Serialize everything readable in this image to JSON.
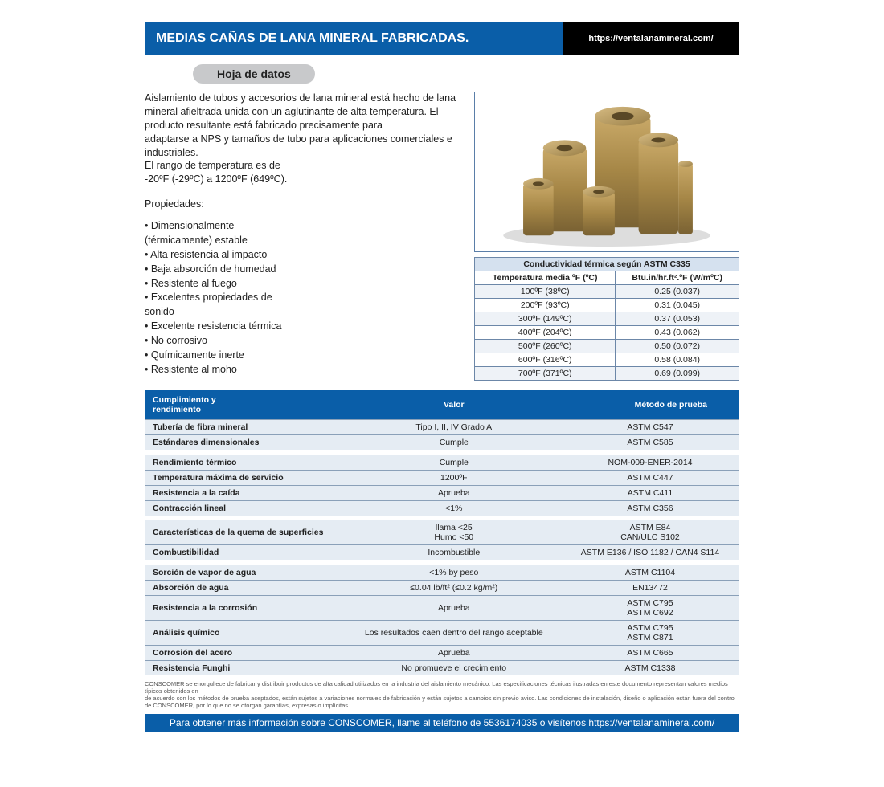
{
  "header": {
    "title": "MEDIAS CAÑAS DE LANA MINERAL FABRICADAS.",
    "url": "https://ventalanamineral.com/"
  },
  "subheader": "Hoja de datos",
  "description": "Aislamiento de tubos y accesorios de lana mineral está hecho de lana mineral afieltrada unida con un aglutinante de alta temperatura. El producto resultante está fabricado precisamente para\nadaptarse a NPS y tamaños de tubo para aplicaciones comerciales e industriales.\nEl rango de temperatura es de\n-20ºF (-29ºC) a 1200ºF (649ºC).",
  "properties_heading": "Propiedades:",
  "properties": [
    "• Dimensionalmente",
    "(térmicamente) estable",
    "• Alta resistencia al impacto",
    "• Baja absorción de humedad",
    "• Resistente al fuego",
    "• Excelentes propiedades de",
    "sonido",
    "• Excelente resistencia térmica",
    "• No corrosivo",
    "• Químicamente inerte",
    "• Resistente al moho"
  ],
  "cond_table": {
    "title": "Conductividad térmica según ASTM C335",
    "col1": "Temperatura media ºF (ºC)",
    "col2": "Btu.in/hr.ft².ºF (W/mºC)",
    "rows": [
      [
        "100ºF (38ºC)",
        "0.25 (0.037)"
      ],
      [
        "200ºF (93ºC)",
        "0.31 (0.045)"
      ],
      [
        "300ºF (149ºC)",
        "0.37 (0.053)"
      ],
      [
        "400ºF (204ºC)",
        "0.43 (0.062)"
      ],
      [
        "500ºF (260ºC)",
        "0.50 (0.072)"
      ],
      [
        "600ºF (316ºC)",
        "0.58 (0.084)"
      ],
      [
        "700ºF (371ºC)",
        "0.69 (0.099)"
      ]
    ]
  },
  "perf_table": {
    "h1": "Cumplimiento y rendimiento",
    "h2": "Valor",
    "h3": "Método de prueba",
    "groups": [
      [
        [
          "Tubería de fibra mineral",
          "Tipo I, II, IV Grado A",
          "ASTM C547"
        ],
        [
          "Estándares dimensionales",
          "Cumple",
          "ASTM C585"
        ]
      ],
      [
        [
          "Rendimiento térmico",
          "Cumple",
          "NOM-009-ENER-2014"
        ],
        [
          "Temperatura máxima de servicio",
          "1200ºF",
          "ASTM C447"
        ],
        [
          "Resistencia a la caída",
          "Aprueba",
          "ASTM C411"
        ],
        [
          "Contracción lineal",
          "<1%",
          "ASTM C356"
        ]
      ],
      [
        [
          "Características de la quema de superficies",
          "llama <25\nHumo <50",
          "ASTM E84\nCAN/ULC S102"
        ],
        [
          "Combustibilidad",
          "Incombustible",
          "ASTM E136 / ISO 1182 / CAN4 S114"
        ]
      ],
      [
        [
          "Sorción de vapor de agua",
          "<1% by peso",
          "ASTM C1104"
        ],
        [
          "Absorción de agua",
          "≤0.04 lb/ft² (≤0.2 kg/m²)",
          "EN13472"
        ],
        [
          "Resistencia a la corrosión",
          "Aprueba",
          "ASTM C795\nASTM C692"
        ],
        [
          "Análisis químico",
          "Los resultados caen dentro del rango aceptable",
          "ASTM C795\nASTM C871"
        ],
        [
          "Corrosión del acero",
          "Aprueba",
          "ASTM C665"
        ],
        [
          "Resistencia Funghi",
          "No promueve el crecimiento",
          "ASTM C1338"
        ]
      ]
    ]
  },
  "disclaimer": "CONSCOMER se enorgullece de fabricar y distribuir productos de alta calidad utilizados en la industria del aislamiento mecánico. Las especificaciones técnicas ilustradas en este documento representan valores medios típicos obtenidos en\nde acuerdo con los métodos de prueba aceptados, están sujetos a variaciones normales de fabricación y están sujetos a cambios sin previo aviso. Las condiciones de instalación, diseño o aplicación están fuera del control de CONSCOMER, por lo que no se otorgan garantías, expresas o implícitas.",
  "footer": "Para obtener más información sobre CONSCOMER, llame al teléfono de 5536174035 o visítenos https://ventalanamineral.com/",
  "colors": {
    "primary_blue": "#0a5ea8",
    "black": "#000000",
    "pill_gray": "#c8c9cb",
    "table_alt": "#e5ecf3",
    "border_blue": "#6c87a8"
  }
}
